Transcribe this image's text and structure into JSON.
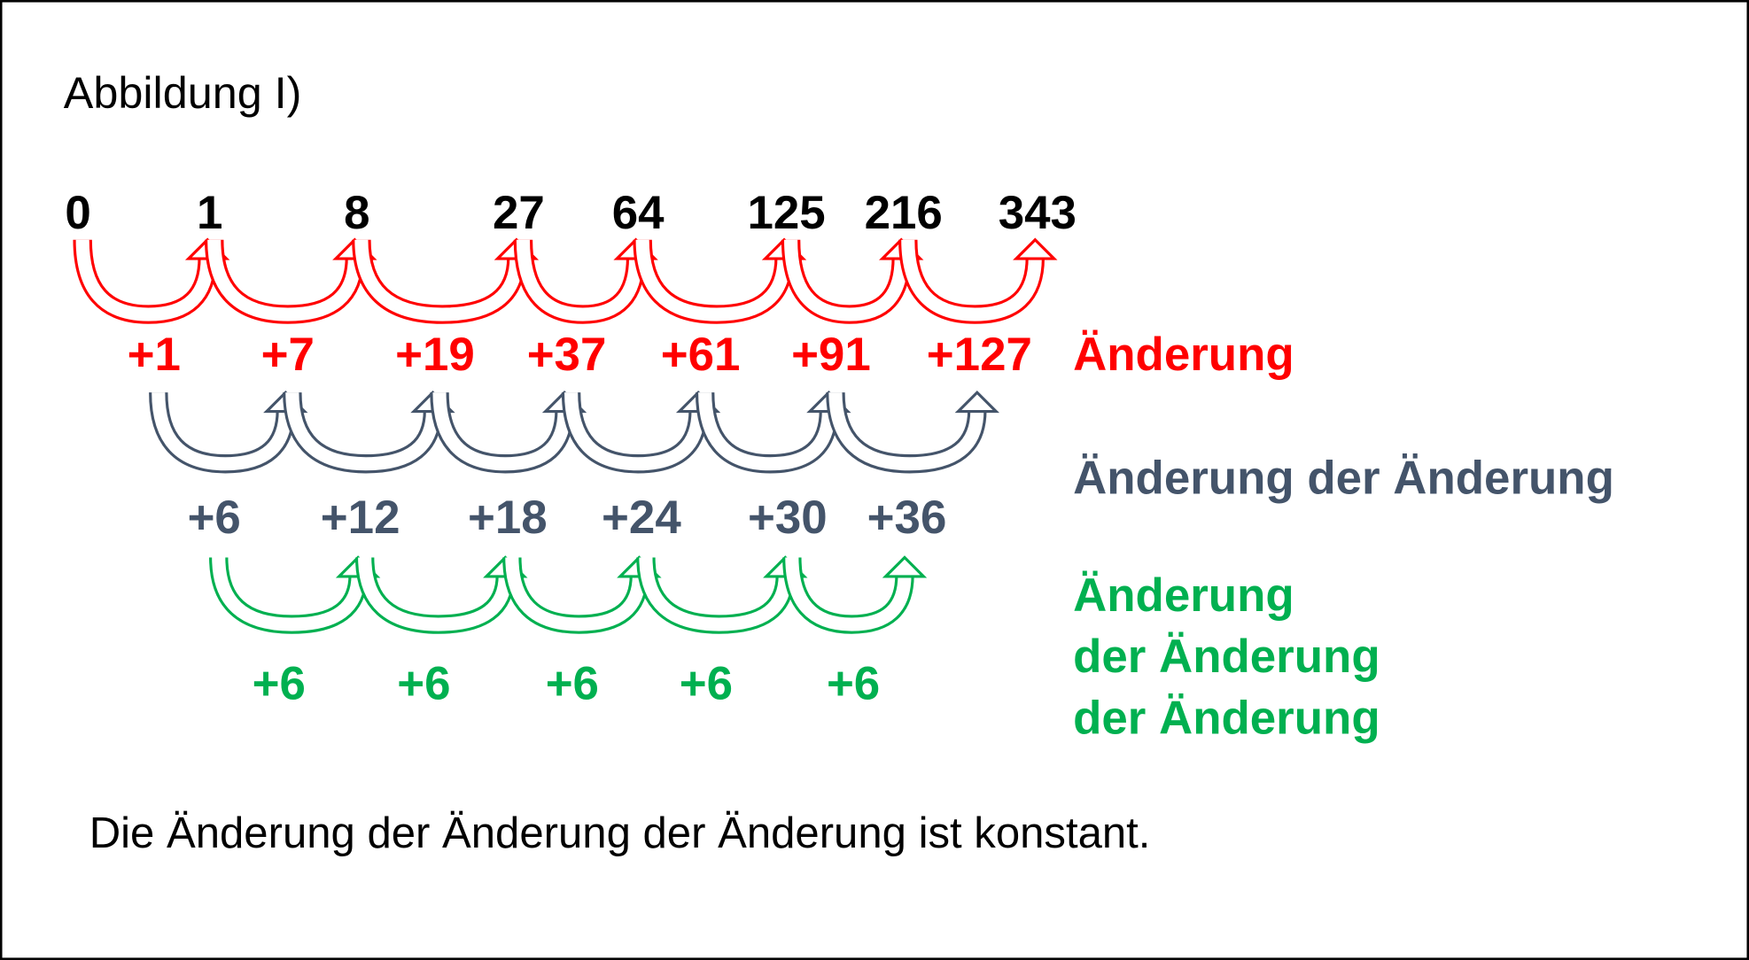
{
  "title": "Abbildung I)",
  "sequence": [
    "0",
    "1",
    "8",
    "27",
    "64",
    "125",
    "216",
    "343"
  ],
  "changes": {
    "values": [
      "+1",
      "+7",
      "+19",
      "+37",
      "+61",
      "+91",
      "+127"
    ],
    "label": "Änderung"
  },
  "second_changes": {
    "values": [
      "+6",
      "+12",
      "+18",
      "+24",
      "+30",
      "+36"
    ],
    "label": "Änderung der Änderung"
  },
  "third_changes": {
    "values": [
      "+6",
      "+6",
      "+6",
      "+6",
      "+6"
    ],
    "label_lines": [
      "Änderung",
      "der Änderung",
      "der Änderung"
    ]
  },
  "conclusion": "Die Änderung der Änderung der Änderung ist konstant."
}
